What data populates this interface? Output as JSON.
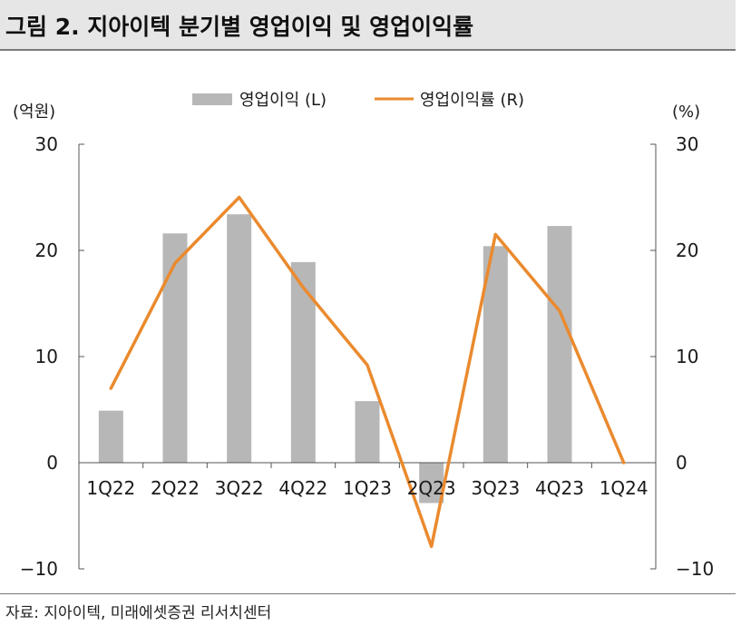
{
  "header": {
    "title": "그림 2. 지아이텍 분기별 영업이익 및 영업이익률"
  },
  "footer": {
    "source": "자료: 지아이텍, 미래에셋증권 리서치센터"
  },
  "colors": {
    "bar": "#b7b7b7",
    "line": "#ea8a2e",
    "axis": "#555555"
  },
  "chart_data": {
    "type": "bar+line",
    "title": "그림 2. 지아이텍 분기별 영업이익 및 영업이익률",
    "categories": [
      "1Q22",
      "2Q22",
      "3Q22",
      "4Q22",
      "1Q23",
      "2Q23",
      "3Q23",
      "4Q23",
      "1Q24"
    ],
    "series": [
      {
        "name": "영업이익 (L)",
        "type": "bar",
        "axis": "left",
        "values": [
          4.9,
          21.6,
          23.4,
          18.9,
          5.8,
          -3.8,
          20.4,
          22.3,
          0
        ]
      },
      {
        "name": "영업이익률 (R)",
        "type": "line",
        "axis": "right",
        "values": [
          7.0,
          18.8,
          25.0,
          16.5,
          9.2,
          -7.9,
          21.5,
          14.3,
          0
        ]
      }
    ],
    "yleft": {
      "label": "(억원)",
      "lim": [
        -10,
        30
      ],
      "ticks": [
        "30",
        "20",
        "10",
        "0",
        "−10"
      ],
      "tickValues": [
        30,
        20,
        10,
        0,
        -10
      ]
    },
    "yright": {
      "label": "(%)",
      "lim": [
        -10,
        30
      ],
      "ticks": [
        "30",
        "20",
        "10",
        "0",
        "−10"
      ],
      "tickValues": [
        30,
        20,
        10,
        0,
        -10
      ]
    },
    "legend": {
      "position": "top-center",
      "bar_label": "영업이익 (L)",
      "line_label": "영업이익률 (R)"
    },
    "grid": false
  }
}
